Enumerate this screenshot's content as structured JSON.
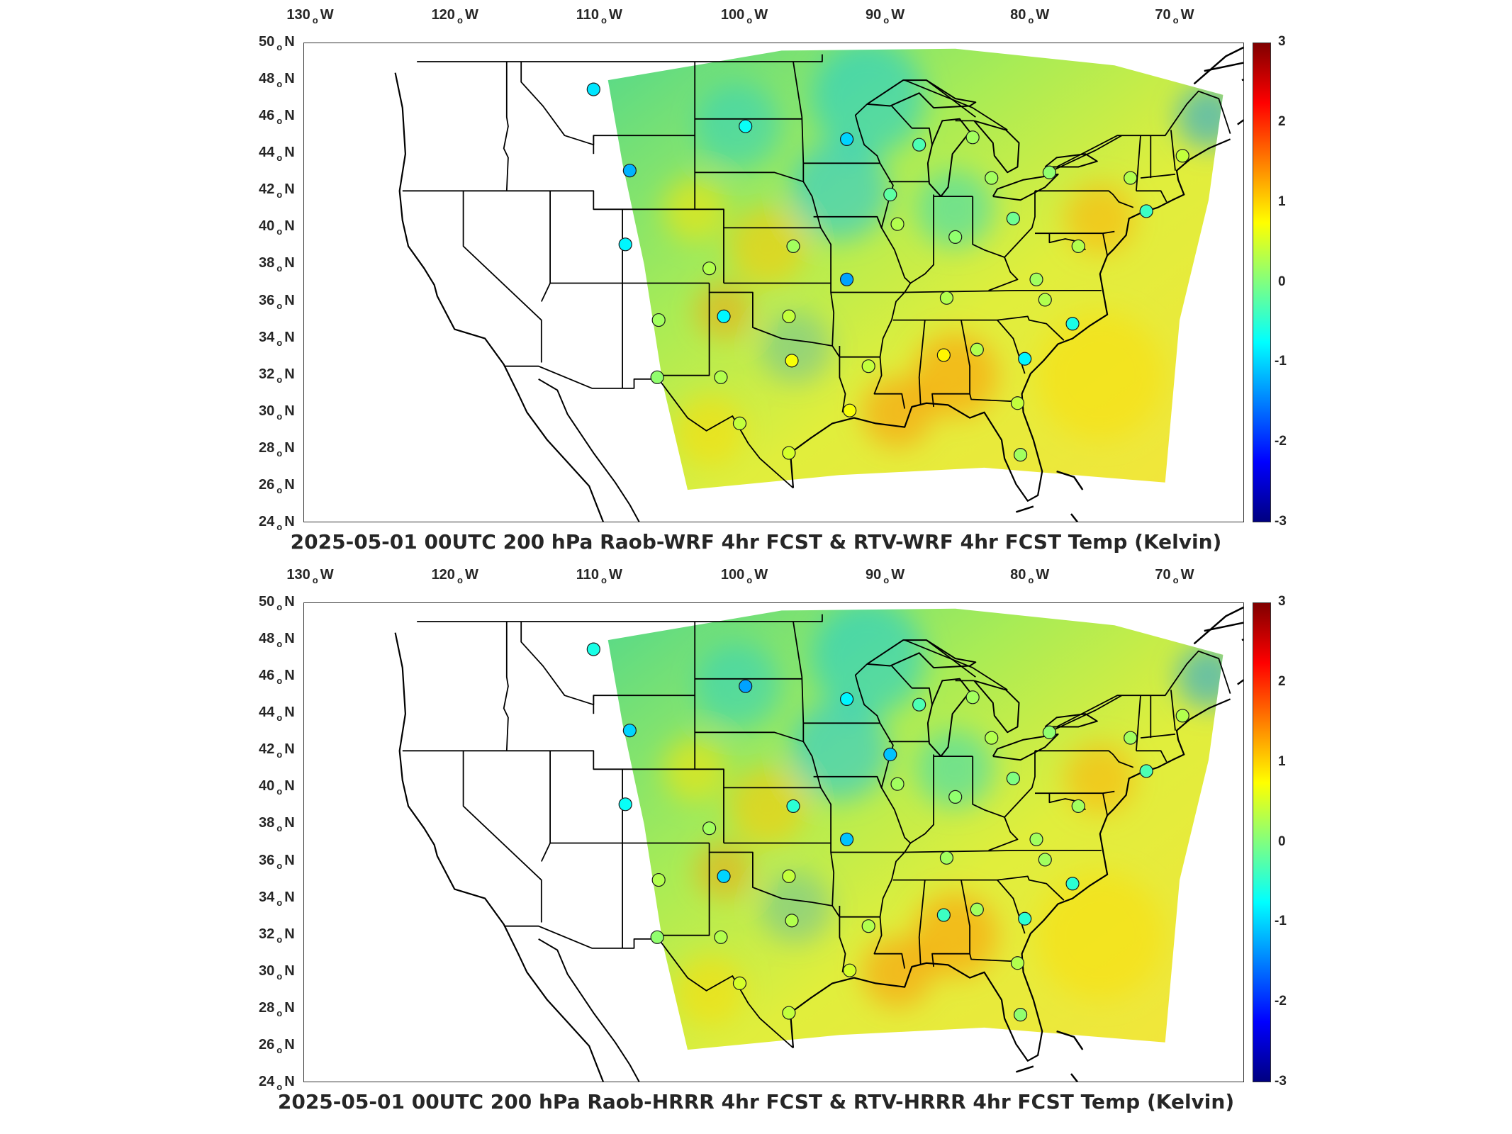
{
  "panels": [
    {
      "title": "2025-05-01 00UTC 200 hPa Raob-WRF 4hr FCST & RTV-WRF 4hr FCST Temp (Kelvin)",
      "stations": [
        {
          "lon": -111.0,
          "lat": 47.5,
          "value": -0.9
        },
        {
          "lon": -100.5,
          "lat": 45.5,
          "value": -0.7
        },
        {
          "lon": -93.5,
          "lat": 44.8,
          "value": -1.0
        },
        {
          "lon": -108.5,
          "lat": 43.1,
          "value": -1.2
        },
        {
          "lon": -108.8,
          "lat": 39.1,
          "value": -0.8
        },
        {
          "lon": -97.2,
          "lat": 39.0,
          "value": 0.2
        },
        {
          "lon": -103.0,
          "lat": 37.8,
          "value": 0.3
        },
        {
          "lon": -93.5,
          "lat": 37.2,
          "value": -1.3
        },
        {
          "lon": -106.5,
          "lat": 35.0,
          "value": 0.2
        },
        {
          "lon": -102.0,
          "lat": 35.2,
          "value": -0.8
        },
        {
          "lon": -97.5,
          "lat": 35.2,
          "value": 0.4
        },
        {
          "lon": -97.3,
          "lat": 32.8,
          "value": 0.7
        },
        {
          "lon": -106.6,
          "lat": 31.9,
          "value": 0.1
        },
        {
          "lon": -102.2,
          "lat": 31.9,
          "value": 0.3
        },
        {
          "lon": -100.9,
          "lat": 29.4,
          "value": 0.4
        },
        {
          "lon": -97.5,
          "lat": 27.8,
          "value": 0.5
        },
        {
          "lon": -92.0,
          "lat": 32.5,
          "value": 0.4
        },
        {
          "lon": -93.3,
          "lat": 30.1,
          "value": 0.7
        },
        {
          "lon": -86.8,
          "lat": 33.1,
          "value": 0.8
        },
        {
          "lon": -84.5,
          "lat": 33.4,
          "value": 0.3
        },
        {
          "lon": -81.2,
          "lat": 32.9,
          "value": -0.8
        },
        {
          "lon": -81.7,
          "lat": 30.5,
          "value": 0.4
        },
        {
          "lon": -81.5,
          "lat": 27.7,
          "value": 0.2
        },
        {
          "lon": -86.6,
          "lat": 36.2,
          "value": 0.3
        },
        {
          "lon": -80.4,
          "lat": 37.2,
          "value": 0.2
        },
        {
          "lon": -77.9,
          "lat": 34.8,
          "value": -0.6
        },
        {
          "lon": -79.8,
          "lat": 36.1,
          "value": 0.3
        },
        {
          "lon": -90.0,
          "lat": 40.2,
          "value": 0.3
        },
        {
          "lon": -90.5,
          "lat": 41.8,
          "value": -0.2
        },
        {
          "lon": -86.0,
          "lat": 39.5,
          "value": 0.1
        },
        {
          "lon": -82.0,
          "lat": 40.5,
          "value": -0.1
        },
        {
          "lon": -88.5,
          "lat": 44.5,
          "value": -0.3
        },
        {
          "lon": -84.8,
          "lat": 44.9,
          "value": 0.2
        },
        {
          "lon": -83.5,
          "lat": 42.7,
          "value": 0.2
        },
        {
          "lon": -79.5,
          "lat": 43.0,
          "value": 0.1
        },
        {
          "lon": -73.9,
          "lat": 42.7,
          "value": 0.3
        },
        {
          "lon": -77.5,
          "lat": 39.0,
          "value": 0.3
        },
        {
          "lon": -72.8,
          "lat": 40.9,
          "value": -0.4
        },
        {
          "lon": -70.3,
          "lat": 43.9,
          "value": 0.4
        }
      ]
    },
    {
      "title": "2025-05-01 00UTC 200 hPa Raob-HRRR 4hr FCST & RTV-HRRR 4hr FCST Temp (Kelvin)",
      "stations": [
        {
          "lon": -111.0,
          "lat": 47.5,
          "value": -0.6
        },
        {
          "lon": -100.5,
          "lat": 45.5,
          "value": -1.3
        },
        {
          "lon": -93.5,
          "lat": 44.8,
          "value": -0.8
        },
        {
          "lon": -108.5,
          "lat": 43.1,
          "value": -1.0
        },
        {
          "lon": -108.8,
          "lat": 39.1,
          "value": -0.7
        },
        {
          "lon": -97.2,
          "lat": 39.0,
          "value": -0.5
        },
        {
          "lon": -103.0,
          "lat": 37.8,
          "value": 0.2
        },
        {
          "lon": -93.5,
          "lat": 37.2,
          "value": -1.1
        },
        {
          "lon": -106.5,
          "lat": 35.0,
          "value": 0.3
        },
        {
          "lon": -102.0,
          "lat": 35.2,
          "value": -1.0
        },
        {
          "lon": -97.5,
          "lat": 35.2,
          "value": 0.4
        },
        {
          "lon": -97.3,
          "lat": 32.8,
          "value": 0.3
        },
        {
          "lon": -106.6,
          "lat": 31.9,
          "value": 0.1
        },
        {
          "lon": -102.2,
          "lat": 31.9,
          "value": 0.3
        },
        {
          "lon": -100.9,
          "lat": 29.4,
          "value": 0.5
        },
        {
          "lon": -97.5,
          "lat": 27.8,
          "value": 0.4
        },
        {
          "lon": -92.0,
          "lat": 32.5,
          "value": 0.3
        },
        {
          "lon": -93.3,
          "lat": 30.1,
          "value": 0.5
        },
        {
          "lon": -86.8,
          "lat": 33.1,
          "value": -0.4
        },
        {
          "lon": -84.5,
          "lat": 33.4,
          "value": 0.2
        },
        {
          "lon": -81.2,
          "lat": 32.9,
          "value": -0.5
        },
        {
          "lon": -81.7,
          "lat": 30.5,
          "value": 0.3
        },
        {
          "lon": -81.5,
          "lat": 27.7,
          "value": 0.1
        },
        {
          "lon": -86.6,
          "lat": 36.2,
          "value": 0.2
        },
        {
          "lon": -80.4,
          "lat": 37.2,
          "value": 0.2
        },
        {
          "lon": -77.9,
          "lat": 34.8,
          "value": -0.5
        },
        {
          "lon": -79.8,
          "lat": 36.1,
          "value": 0.2
        },
        {
          "lon": -90.0,
          "lat": 40.2,
          "value": 0.2
        },
        {
          "lon": -90.5,
          "lat": 41.8,
          "value": -1.1
        },
        {
          "lon": -86.0,
          "lat": 39.5,
          "value": 0.1
        },
        {
          "lon": -82.0,
          "lat": 40.5,
          "value": 0.0
        },
        {
          "lon": -88.5,
          "lat": 44.5,
          "value": -0.3
        },
        {
          "lon": -84.8,
          "lat": 44.9,
          "value": 0.2
        },
        {
          "lon": -83.5,
          "lat": 42.7,
          "value": 0.3
        },
        {
          "lon": -79.5,
          "lat": 43.0,
          "value": 0.1
        },
        {
          "lon": -73.9,
          "lat": 42.7,
          "value": 0.2
        },
        {
          "lon": -77.5,
          "lat": 39.0,
          "value": 0.2
        },
        {
          "lon": -72.8,
          "lat": 40.9,
          "value": -0.3
        },
        {
          "lon": -70.3,
          "lat": 43.9,
          "value": 0.3
        }
      ]
    }
  ],
  "axes": {
    "lon_ticks": [
      {
        "value": -130,
        "label": "130",
        "hemi": "W"
      },
      {
        "value": -120,
        "label": "120",
        "hemi": "W"
      },
      {
        "value": -110,
        "label": "110",
        "hemi": "W"
      },
      {
        "value": -100,
        "label": "100",
        "hemi": "W"
      },
      {
        "value": -90,
        "label": "90",
        "hemi": "W"
      },
      {
        "value": -80,
        "label": "80",
        "hemi": "W"
      },
      {
        "value": -70,
        "label": "70",
        "hemi": "W"
      }
    ],
    "lat_ticks": [
      {
        "value": 50,
        "label": "50",
        "hemi": "N"
      },
      {
        "value": 48,
        "label": "48",
        "hemi": "N"
      },
      {
        "value": 46,
        "label": "46",
        "hemi": "N"
      },
      {
        "value": 44,
        "label": "44",
        "hemi": "N"
      },
      {
        "value": 42,
        "label": "42",
        "hemi": "N"
      },
      {
        "value": 40,
        "label": "40",
        "hemi": "N"
      },
      {
        "value": 38,
        "label": "38",
        "hemi": "N"
      },
      {
        "value": 36,
        "label": "36",
        "hemi": "N"
      },
      {
        "value": 34,
        "label": "34",
        "hemi": "N"
      },
      {
        "value": 32,
        "label": "32",
        "hemi": "N"
      },
      {
        "value": 30,
        "label": "30",
        "hemi": "N"
      },
      {
        "value": 28,
        "label": "28",
        "hemi": "N"
      },
      {
        "value": 26,
        "label": "26",
        "hemi": "N"
      },
      {
        "value": 24,
        "label": "24",
        "hemi": "N"
      }
    ],
    "lon_range": [
      -131,
      -66
    ],
    "lat_range": [
      24,
      50
    ]
  },
  "colorbar": {
    "labels": [
      "3",
      "2",
      "1",
      "0",
      "-1",
      "-2",
      "-3"
    ],
    "range": [
      -3,
      3
    ],
    "colormap": "jet"
  }
}
